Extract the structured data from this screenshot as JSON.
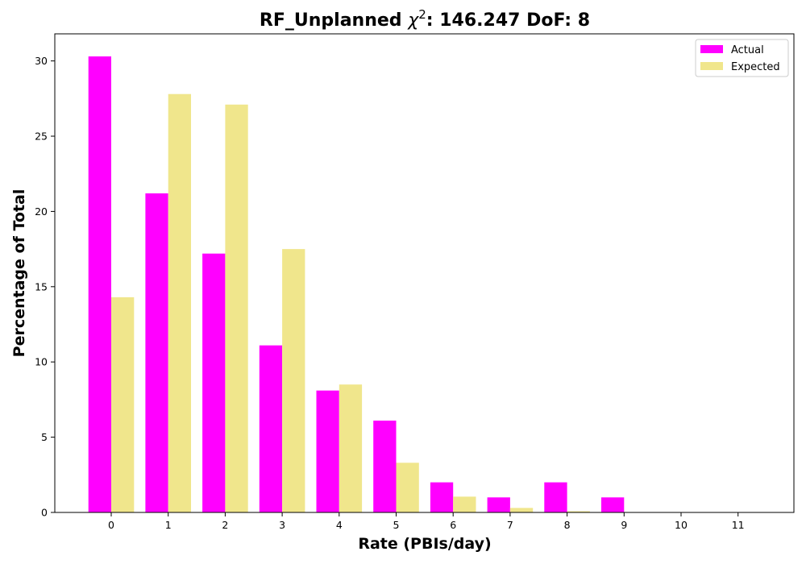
{
  "chart_data": {
    "type": "bar",
    "title_prefix": "RF_Unplanned ",
    "title_chi": "χ",
    "title_sup": "2",
    "title_suffix": ": 146.247 DoF: 8",
    "xlabel": "Rate (PBIs/day)",
    "ylabel": "Percentage of Total",
    "categories": [
      "0",
      "1",
      "2",
      "3",
      "4",
      "5",
      "6",
      "7",
      "8",
      "9",
      "10",
      "11"
    ],
    "series": [
      {
        "name": "Actual",
        "color": "#ff00ff",
        "values": [
          30.3,
          21.2,
          17.2,
          11.1,
          8.1,
          6.1,
          2.0,
          1.0,
          2.0,
          1.0,
          0,
          0
        ]
      },
      {
        "name": "Expected",
        "color": "#f0e68c",
        "values": [
          14.3,
          27.8,
          27.1,
          17.5,
          8.5,
          3.3,
          1.05,
          0.3,
          0.08,
          0.02,
          0,
          0
        ]
      }
    ],
    "ylim": [
      0,
      31.8
    ],
    "yticks": [
      0,
      5,
      10,
      15,
      20,
      25,
      30
    ],
    "grid": false,
    "legend_position": "top-right"
  }
}
